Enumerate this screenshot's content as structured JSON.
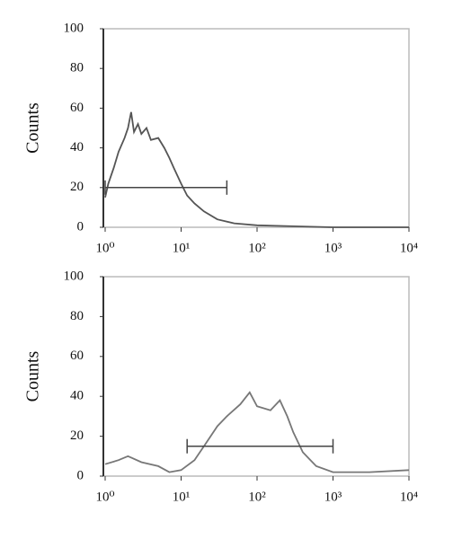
{
  "chart_data": [
    {
      "type": "line",
      "ylabel": "Counts",
      "color": "#555555",
      "xscale": "log",
      "grid": false,
      "x": [
        1,
        1.1,
        1.3,
        1.5,
        1.8,
        2,
        2.2,
        2.4,
        2.7,
        3,
        3.5,
        4,
        5,
        6,
        7,
        8,
        10,
        12,
        15,
        20,
        30,
        50,
        100,
        300,
        1000,
        10000
      ],
      "values": [
        15,
        22,
        30,
        38,
        45,
        50,
        58,
        48,
        52,
        47,
        50,
        44,
        45,
        40,
        35,
        30,
        22,
        16,
        12,
        8,
        4,
        2,
        1,
        0.5,
        0,
        0
      ],
      "gate": {
        "x": [
          1,
          40
        ],
        "y": 20
      },
      "xlim": [
        1,
        10000
      ],
      "ylim": [
        0,
        100
      ],
      "xticks": [
        {
          "value": 1,
          "label": "10⁰"
        },
        {
          "value": 10,
          "label": "10¹"
        },
        {
          "value": 100,
          "label": "10²"
        },
        {
          "value": 1000,
          "label": "10³"
        },
        {
          "value": 10000,
          "label": "10⁴"
        }
      ],
      "yticks": [
        0,
        20,
        40,
        60,
        80,
        100
      ]
    },
    {
      "type": "line",
      "ylabel": "Counts",
      "color": "#777777",
      "xscale": "log",
      "grid": false,
      "x": [
        1,
        1.5,
        2,
        3,
        5,
        7,
        10,
        15,
        20,
        30,
        40,
        60,
        80,
        100,
        150,
        200,
        250,
        300,
        400,
        600,
        1000,
        3000,
        10000
      ],
      "values": [
        6,
        8,
        10,
        7,
        5,
        2,
        3,
        8,
        15,
        25,
        30,
        36,
        42,
        35,
        33,
        38,
        30,
        22,
        12,
        5,
        2,
        2,
        3
      ],
      "gate": {
        "x": [
          12,
          1000
        ],
        "y": 15
      },
      "xlim": [
        1,
        10000
      ],
      "ylim": [
        0,
        100
      ],
      "xticks": [
        {
          "value": 1,
          "label": "10⁰"
        },
        {
          "value": 10,
          "label": "10¹"
        },
        {
          "value": 100,
          "label": "10²"
        },
        {
          "value": 1000,
          "label": "10³"
        },
        {
          "value": 10000,
          "label": "10⁴"
        }
      ],
      "yticks": [
        0,
        20,
        40,
        60,
        80,
        100
      ]
    }
  ]
}
